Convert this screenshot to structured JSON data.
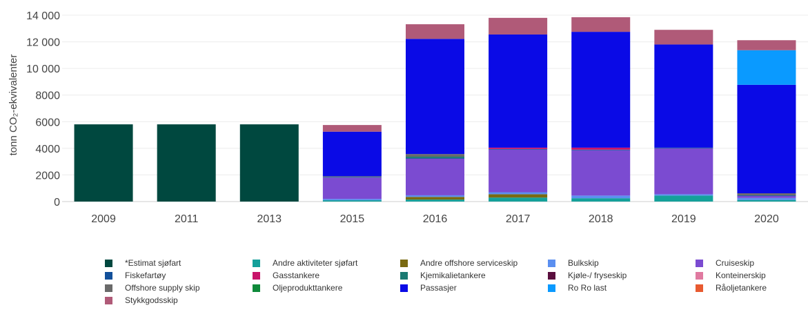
{
  "chart_data": {
    "type": "bar",
    "stacked": true,
    "ylabel": "tonn CO₂-ekvivalenter",
    "ylim": [
      0,
      14000
    ],
    "y_ticks": [
      0,
      2000,
      4000,
      6000,
      8000,
      10000,
      12000,
      14000
    ],
    "y_tick_labels": [
      "0",
      "2000",
      "4000",
      "6000",
      "8000",
      "10 000",
      "12 000",
      "14 000"
    ],
    "categories": [
      "2009",
      "2011",
      "2013",
      "2015",
      "2016",
      "2017",
      "2018",
      "2019",
      "2020"
    ],
    "grid": true,
    "legend_position": "bottom",
    "series": [
      {
        "name": "*Estimat sjøfart",
        "color": "#00483f",
        "values": [
          5800,
          5800,
          5800,
          0,
          0,
          0,
          0,
          0,
          0
        ]
      },
      {
        "name": "Andre aktiviteter sjøfart",
        "color": "#14a09a",
        "values": [
          0,
          0,
          0,
          100,
          150,
          300,
          250,
          450,
          120
        ]
      },
      {
        "name": "Andre offshore serviceskip",
        "color": "#7a6a12",
        "values": [
          0,
          0,
          0,
          0,
          200,
          250,
          0,
          0,
          0
        ]
      },
      {
        "name": "Bulkskip",
        "color": "#5b8ff0",
        "values": [
          0,
          0,
          0,
          100,
          120,
          150,
          200,
          100,
          150
        ]
      },
      {
        "name": "Cruiseskip",
        "color": "#7b4bd1",
        "values": [
          0,
          0,
          0,
          1600,
          2750,
          3200,
          3400,
          3450,
          150
        ]
      },
      {
        "name": "Fiskefartøy",
        "color": "#12509a",
        "values": [
          0,
          0,
          0,
          50,
          50,
          50,
          50,
          50,
          50
        ]
      },
      {
        "name": "Gasstankere",
        "color": "#c8146a",
        "values": [
          0,
          0,
          0,
          0,
          0,
          100,
          150,
          0,
          0
        ]
      },
      {
        "name": "Kjemikalietankere",
        "color": "#1a7a72",
        "values": [
          0,
          0,
          0,
          0,
          100,
          0,
          0,
          0,
          0
        ]
      },
      {
        "name": "Kjøle-/ fryseskip",
        "color": "#5a0f3e",
        "values": [
          0,
          0,
          0,
          0,
          0,
          0,
          0,
          0,
          0
        ]
      },
      {
        "name": "Konteinerskip",
        "color": "#e07aa0",
        "values": [
          0,
          0,
          0,
          0,
          0,
          0,
          0,
          0,
          0
        ]
      },
      {
        "name": "Offshore supply skip",
        "color": "#6a6a6a",
        "values": [
          0,
          0,
          0,
          50,
          200,
          0,
          0,
          0,
          150
        ]
      },
      {
        "name": "Oljeprodukttankere",
        "color": "#0e8a3a",
        "values": [
          0,
          0,
          0,
          0,
          0,
          0,
          0,
          0,
          0
        ]
      },
      {
        "name": "Passasjer",
        "color": "#0a0ae6",
        "values": [
          0,
          0,
          0,
          3350,
          8650,
          8500,
          8700,
          7750,
          8150
        ]
      },
      {
        "name": "Ro Ro last",
        "color": "#0a9aff",
        "values": [
          0,
          0,
          0,
          0,
          0,
          0,
          0,
          0,
          2600
        ]
      },
      {
        "name": "Råoljetankere",
        "color": "#e85a30",
        "values": [
          0,
          0,
          0,
          0,
          0,
          0,
          0,
          0,
          0
        ]
      },
      {
        "name": "Stykkgodsskip",
        "color": "#b05a78",
        "values": [
          0,
          0,
          0,
          500,
          1100,
          1250,
          1100,
          1100,
          750
        ]
      }
    ]
  }
}
